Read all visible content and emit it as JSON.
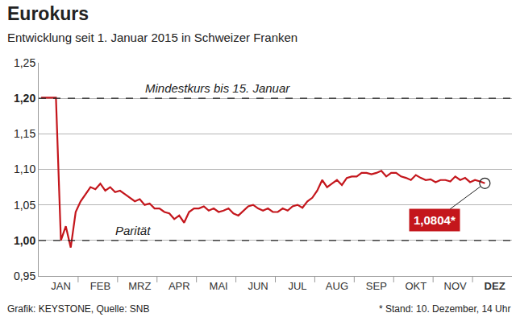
{
  "chart_data": {
    "type": "line",
    "title": "Eurokurs",
    "subtitle": "Entwicklung seit 1. Januar 2015 in Schweizer Franken",
    "categories": [
      null,
      null,
      null,
      null,
      "JAN",
      null,
      null,
      null,
      null,
      null,
      null,
      null,
      "FEB",
      null,
      null,
      null,
      null,
      null,
      null,
      null,
      "MRZ",
      null,
      null,
      null,
      null,
      null,
      null,
      null,
      "APR",
      null,
      null,
      null,
      null,
      null,
      null,
      null,
      "MAI",
      null,
      null,
      null,
      null,
      null,
      null,
      null,
      "JUN",
      null,
      null,
      null,
      null,
      null,
      null,
      null,
      "JUL",
      null,
      null,
      null,
      null,
      null,
      null,
      null,
      "AUG",
      null,
      null,
      null,
      null,
      null,
      null,
      null,
      "SEP",
      null,
      null,
      null,
      null,
      null,
      null,
      null,
      "OKT",
      null,
      null,
      null,
      null,
      null,
      null,
      null,
      "NOV",
      null,
      null,
      null,
      null,
      null,
      null,
      null,
      "DEZ",
      null,
      null,
      null
    ],
    "values": [
      1.201,
      1.201,
      1.2009,
      1.2008,
      1.0,
      1.02,
      0.99,
      1.04,
      1.055,
      1.065,
      1.075,
      1.072,
      1.08,
      1.07,
      1.075,
      1.068,
      1.07,
      1.065,
      1.06,
      1.055,
      1.058,
      1.05,
      1.052,
      1.045,
      1.045,
      1.04,
      1.038,
      1.03,
      1.035,
      1.025,
      1.04,
      1.045,
      1.045,
      1.048,
      1.042,
      1.045,
      1.04,
      1.042,
      1.045,
      1.038,
      1.035,
      1.042,
      1.048,
      1.05,
      1.045,
      1.042,
      1.045,
      1.04,
      1.04,
      1.045,
      1.042,
      1.048,
      1.05,
      1.046,
      1.055,
      1.06,
      1.07,
      1.085,
      1.075,
      1.08,
      1.085,
      1.078,
      1.088,
      1.09,
      1.09,
      1.095,
      1.095,
      1.093,
      1.095,
      1.098,
      1.09,
      1.095,
      1.095,
      1.09,
      1.088,
      1.085,
      1.092,
      1.088,
      1.085,
      1.086,
      1.082,
      1.085,
      1.085,
      1.083,
      1.09,
      1.085,
      1.088,
      1.082,
      1.085,
      1.083,
      1.0804,
      null,
      null,
      null,
      null,
      null
    ],
    "color": "#c4161c",
    "ylim": [
      0.95,
      1.25
    ],
    "yticks": [
      {
        "value": 0.95,
        "label": "0,95"
      },
      {
        "value": 1.0,
        "label": "1,00"
      },
      {
        "value": 1.05,
        "label": "1,05"
      },
      {
        "value": 1.1,
        "label": "1,10"
      },
      {
        "value": 1.15,
        "label": "1,15"
      },
      {
        "value": 1.2,
        "label": "1,20"
      },
      {
        "value": 1.25,
        "label": "1,25"
      }
    ],
    "grid": true,
    "annotations": [
      {
        "text": "Mindestkurs bis 15. Januar",
        "y": 1.2
      },
      {
        "text": "Parität",
        "y": 1.0
      }
    ],
    "callout": {
      "text": "1,0804*",
      "value": 1.0804
    },
    "source": "Grafik: KEYSTONE, Quelle: SNB",
    "note": "* Stand: 10. Dezember, 14 Uhr"
  }
}
